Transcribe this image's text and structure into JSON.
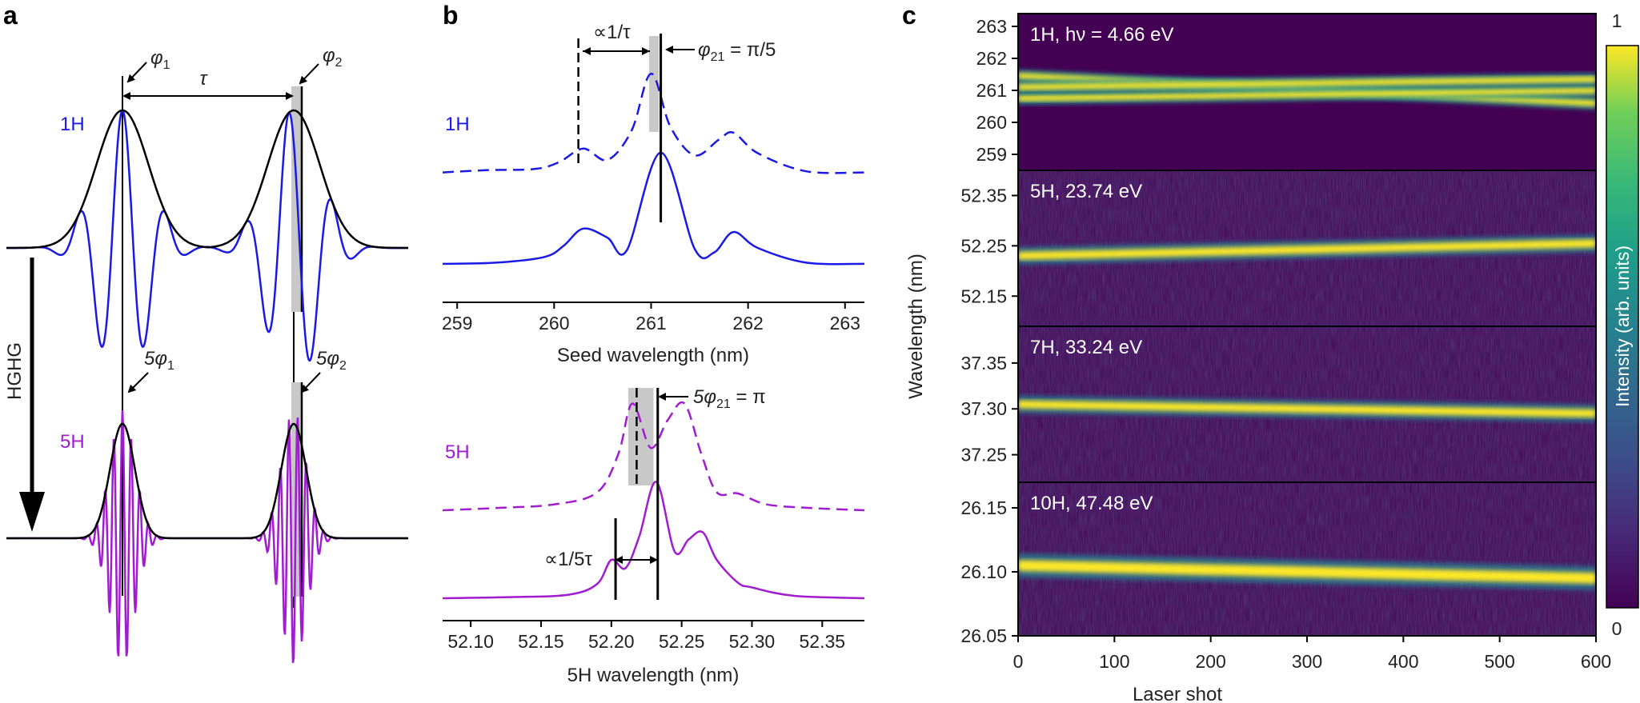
{
  "panel_a": {
    "letter": "a",
    "phi1": "φ",
    "phi1_sub": "1",
    "phi2": "φ",
    "phi2_sub": "2",
    "tau": "τ",
    "label_1H": "1H",
    "label_5H": "5H",
    "hghg": "HGHG",
    "five_phi1": "5φ",
    "five_phi1_sub": "1",
    "five_phi2": "5φ",
    "five_phi2_sub": "2",
    "colors": {
      "h1": "#1a1ae6",
      "h5": "#a11bd1",
      "env": "#000000",
      "gray": "#c8c8c8"
    }
  },
  "panel_b": {
    "letter": "b",
    "label_1H": "1H",
    "label_5H": "5H",
    "prop_tau": "∝1/τ",
    "phi21": "φ",
    "phi21_sub": "21",
    "phi21_val": " = π/5",
    "five_phi21": "5φ",
    "five_phi21_sub": "21",
    "five_phi21_val": " = π",
    "prop_5tau": "∝1/5τ",
    "chart_data": [
      {
        "type": "line",
        "title": "1H",
        "xlabel": "Seed wavelength (nm)",
        "ticks": [
          "259",
          "260",
          "261",
          "262",
          "263"
        ],
        "xlim": [
          258.85,
          263.2
        ],
        "series": [
          {
            "name": "seed spectrum (dashed)",
            "style": "dashed",
            "x": [
              258.85,
              259.3,
              259.8,
              260.05,
              260.3,
              260.55,
              260.8,
              261.0,
              261.2,
              261.45,
              261.7,
              261.85,
              262.1,
              262.6,
              263.2
            ],
            "y": [
              0.05,
              0.07,
              0.08,
              0.14,
              0.26,
              0.16,
              0.42,
              0.92,
              0.45,
              0.2,
              0.34,
              0.4,
              0.22,
              0.06,
              0.05
            ]
          },
          {
            "name": "seed spectrum (solid)",
            "style": "solid",
            "x": [
              258.85,
              259.4,
              259.9,
              260.1,
              260.3,
              260.55,
              260.75,
              261.1,
              261.45,
              261.65,
              261.85,
              262.1,
              262.6,
              263.2
            ],
            "y": [
              0.02,
              0.03,
              0.08,
              0.18,
              0.33,
              0.25,
              0.14,
              1.0,
              0.15,
              0.12,
              0.3,
              0.16,
              0.03,
              0.02
            ]
          }
        ],
        "markers": {
          "dashed_line": 260.25,
          "solid_line": 261.1,
          "shaded": [
            260.98,
            261.08
          ]
        }
      },
      {
        "type": "line",
        "title": "5H",
        "xlabel": "5H wavelength (nm)",
        "ticks": [
          "52.10",
          "52.15",
          "52.20",
          "52.25",
          "52.30",
          "52.35"
        ],
        "xlim": [
          52.08,
          52.38
        ],
        "series": [
          {
            "name": "5H spectrum (dashed)",
            "style": "dashed",
            "x": [
              52.08,
              52.12,
              52.16,
              52.19,
              52.205,
              52.215,
              52.228,
              52.24,
              52.252,
              52.264,
              52.275,
              52.29,
              52.31,
              52.34,
              52.38
            ],
            "y": [
              0.03,
              0.05,
              0.08,
              0.18,
              0.5,
              0.92,
              0.55,
              0.78,
              0.92,
              0.5,
              0.18,
              0.17,
              0.08,
              0.05,
              0.03
            ]
          },
          {
            "name": "5H spectrum (solid)",
            "style": "solid",
            "x": [
              52.08,
              52.13,
              52.17,
              52.19,
              52.2,
              52.21,
              52.22,
              52.232,
              52.245,
              52.255,
              52.265,
              52.275,
              52.29,
              52.3,
              52.33,
              52.38
            ],
            "y": [
              0.03,
              0.04,
              0.06,
              0.15,
              0.35,
              0.28,
              0.55,
              1.0,
              0.42,
              0.52,
              0.58,
              0.35,
              0.16,
              0.12,
              0.05,
              0.03
            ]
          }
        ],
        "markers": {
          "dashed_line": 52.218,
          "solid_line": 52.233,
          "bar_line": 52.203,
          "shaded": [
            52.212,
            52.23
          ]
        }
      }
    ]
  },
  "panel_c": {
    "letter": "c",
    "ylabel": "Wavelength (nm)",
    "xlabel": "Laser shot",
    "xticks": [
      "0",
      "100",
      "200",
      "300",
      "400",
      "500",
      "600"
    ],
    "colorbar_label": "Intensity (arb. units)",
    "colorbar_max": "1",
    "colorbar_min": "0",
    "subplots": [
      {
        "label": "1H, hν = 4.66 eV",
        "yticks": [
          "263",
          "262",
          "261",
          "260",
          "259"
        ]
      },
      {
        "label": "5H, 23.74 eV",
        "yticks": [
          "52.35",
          "52.25",
          "52.15"
        ]
      },
      {
        "label": "7H, 33.24 eV",
        "yticks": [
          "37.35",
          "37.30",
          "37.25"
        ]
      },
      {
        "label": "10H, 47.48 eV",
        "yticks": [
          "26.15",
          "26.10",
          "26.05"
        ]
      }
    ],
    "chart_data": {
      "type": "heatmap",
      "x_range": [
        0,
        600
      ],
      "subplots": [
        {
          "name": "1H",
          "ylim": [
            258.5,
            263.4
          ],
          "bands": [
            {
              "start": 261.45,
              "end": 260.6
            },
            {
              "start": 260.75,
              "end": 261.0
            },
            {
              "start": 261.1,
              "end": 261.35
            }
          ]
        },
        {
          "name": "5H",
          "ylim": [
            52.09,
            52.4
          ],
          "bands": [
            {
              "start": 52.23,
              "end": 52.255
            }
          ]
        },
        {
          "name": "7H",
          "ylim": [
            37.22,
            37.39
          ],
          "bands": [
            {
              "start": 37.305,
              "end": 37.295
            }
          ]
        },
        {
          "name": "10H",
          "ylim": [
            26.05,
            26.17
          ],
          "bands": [
            {
              "start": 26.105,
              "end": 26.095
            }
          ]
        }
      ]
    }
  }
}
